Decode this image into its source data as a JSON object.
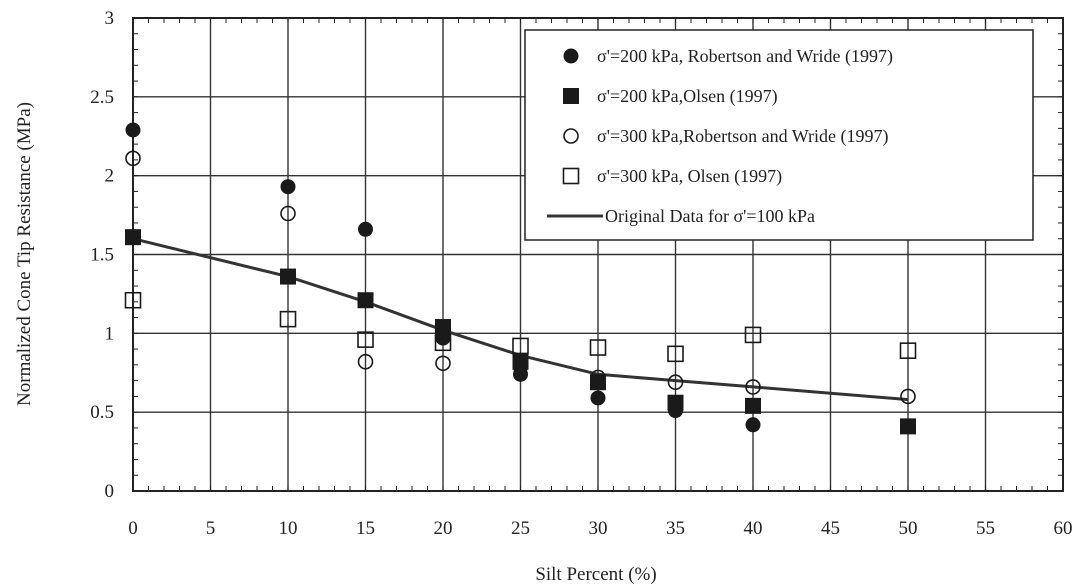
{
  "chart_data": {
    "type": "scatter",
    "xlabel": "Silt Percent (%)",
    "ylabel": "Normalized Cone Tip Resistance (MPa)",
    "xlim": [
      0,
      60
    ],
    "ylim": [
      0,
      3
    ],
    "xticks": [
      "0",
      "5",
      "10",
      "15",
      "20",
      "25",
      "30",
      "35",
      "40",
      "45",
      "50",
      "55",
      "60"
    ],
    "yticks": [
      "0",
      "0.5",
      "1",
      "1.5",
      "2",
      "2.5",
      "3"
    ],
    "grid": true,
    "legend_position": "top-right",
    "series": [
      {
        "name": "σ'=200 kPa, Robertson and Wride (1997)",
        "marker": "filled-circle",
        "points": [
          [
            0,
            2.29
          ],
          [
            10,
            1.93
          ],
          [
            15,
            1.66
          ],
          [
            20,
            0.97
          ],
          [
            25,
            0.74
          ],
          [
            30,
            0.59
          ],
          [
            35,
            0.51
          ],
          [
            40,
            0.42
          ]
        ]
      },
      {
        "name": "σ'=200 kPa,Olsen (1997)",
        "marker": "filled-square",
        "points": [
          [
            0,
            1.61
          ],
          [
            10,
            1.36
          ],
          [
            15,
            1.21
          ],
          [
            20,
            1.04
          ],
          [
            25,
            0.82
          ],
          [
            30,
            0.69
          ],
          [
            35,
            0.56
          ],
          [
            40,
            0.54
          ],
          [
            50,
            0.41
          ]
        ]
      },
      {
        "name": "σ'=300 kPa,Robertson and Wride (1997)",
        "marker": "open-circle",
        "points": [
          [
            0,
            2.11
          ],
          [
            10,
            1.76
          ],
          [
            15,
            0.82
          ],
          [
            20,
            0.81
          ],
          [
            25,
            0.79
          ],
          [
            30,
            0.72
          ],
          [
            35,
            0.69
          ],
          [
            40,
            0.66
          ],
          [
            50,
            0.6
          ]
        ]
      },
      {
        "name": "σ'=300 kPa, Olsen (1997)",
        "marker": "open-square",
        "points": [
          [
            0,
            1.21
          ],
          [
            10,
            1.09
          ],
          [
            15,
            0.96
          ],
          [
            20,
            0.94
          ],
          [
            25,
            0.92
          ],
          [
            30,
            0.91
          ],
          [
            35,
            0.87
          ],
          [
            40,
            0.99
          ],
          [
            50,
            0.89
          ]
        ]
      },
      {
        "name": "Original Data for σ'=100 kPa",
        "marker": "line",
        "points": [
          [
            0,
            1.6
          ],
          [
            10,
            1.36
          ],
          [
            15,
            1.2
          ],
          [
            20,
            1.02
          ],
          [
            25,
            0.86
          ],
          [
            30,
            0.74
          ],
          [
            35,
            0.7
          ],
          [
            40,
            0.66
          ],
          [
            50,
            0.58
          ]
        ]
      }
    ]
  }
}
